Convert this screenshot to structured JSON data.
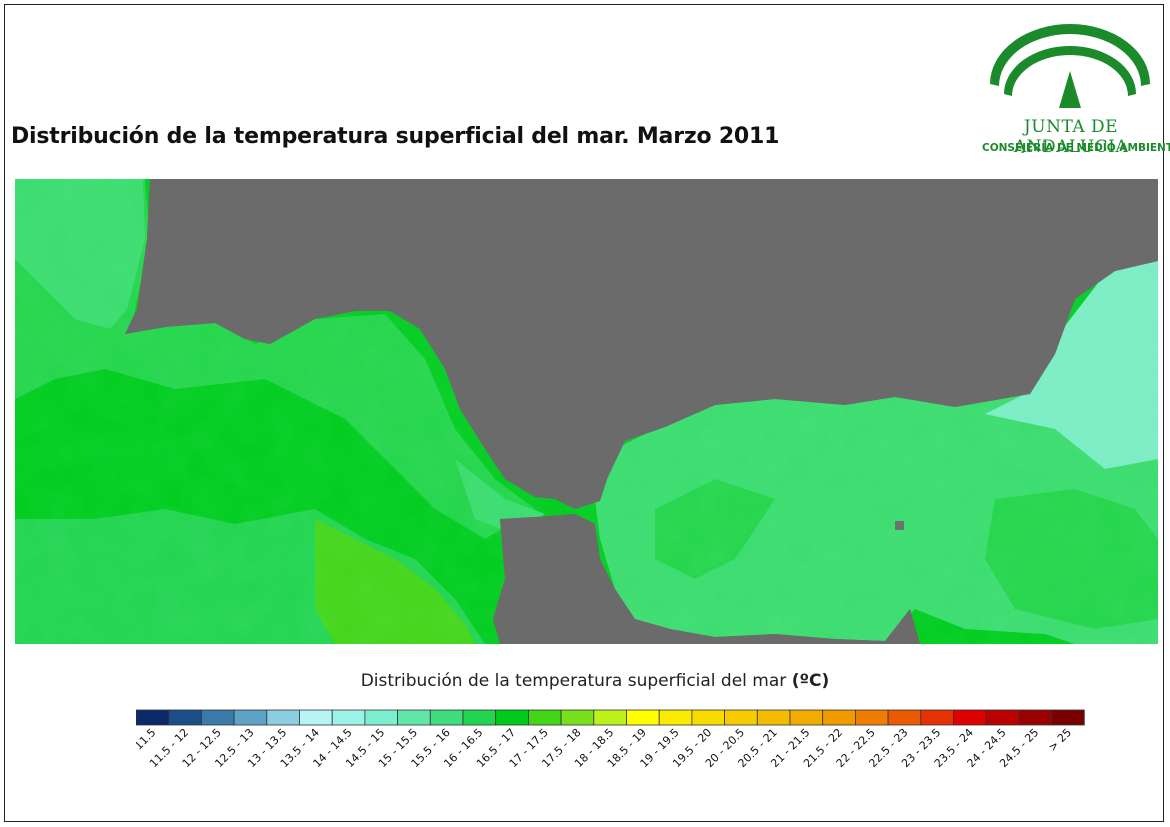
{
  "title": "Distribución de la temperatura superficial del mar. Marzo 2011",
  "logo": {
    "org": "JUNTA DE ANDALUCIA",
    "department": "CONSEJERÍA DE MEDIO AMBIENTE",
    "color": "#1a8a2b",
    "icon": "andalucia-arches-logo-icon"
  },
  "map": {
    "land_color": "#6b6b6b",
    "description_colors": {
      "sst_16_5_17": "#00cc1e",
      "sst_16_16_5": "#24d54b",
      "sst_15_5_16": "#3bdc6f",
      "sst_15_15_5": "#55e596",
      "sst_14_5_15": "#7dedc6",
      "sst_17_17_5": "#5ed610"
    }
  },
  "legend": {
    "title": "Distribución de la temperatura superficial del mar",
    "unit": "(ºC)",
    "classes": [
      {
        "label": "< 11.5",
        "color": "#0a2a6a"
      },
      {
        "label": "11.5 - 12",
        "color": "#1b4e89"
      },
      {
        "label": "12 - 12.5",
        "color": "#3a7aa8"
      },
      {
        "label": "12.5 - 13",
        "color": "#5ea3c6"
      },
      {
        "label": "13 - 13.5",
        "color": "#8ccde0"
      },
      {
        "label": "13.5 - 14",
        "color": "#b8f3f5"
      },
      {
        "label": "14 - 14.5",
        "color": "#9cf2e6"
      },
      {
        "label": "14.5 - 15",
        "color": "#7eeed0"
      },
      {
        "label": "15 - 15.5",
        "color": "#5fe6a8"
      },
      {
        "label": "15.5 - 16",
        "color": "#3edc7c"
      },
      {
        "label": "16 - 16.5",
        "color": "#22d450"
      },
      {
        "label": "16.5 - 17",
        "color": "#00cb1c"
      },
      {
        "label": "17 - 17.5",
        "color": "#45d518"
      },
      {
        "label": "17.5 - 18",
        "color": "#78e01c"
      },
      {
        "label": "18 - 18.5",
        "color": "#bcf21a"
      },
      {
        "label": "18.5 - 19",
        "color": "#ffff00"
      },
      {
        "label": "19 - 19.5",
        "color": "#fbeb00"
      },
      {
        "label": "19.5 - 20",
        "color": "#f8dc00"
      },
      {
        "label": "20 - 20.5",
        "color": "#f6cc00"
      },
      {
        "label": "20.5 - 21",
        "color": "#f4bc00"
      },
      {
        "label": "21 - 21.5",
        "color": "#f2ac00"
      },
      {
        "label": "21.5 - 22",
        "color": "#f19a00"
      },
      {
        "label": "22 - 22.5",
        "color": "#ef7d00"
      },
      {
        "label": "22.5 - 23",
        "color": "#eb5a00"
      },
      {
        "label": "23 - 23.5",
        "color": "#e63200"
      },
      {
        "label": "23.5 - 24",
        "color": "#df0000"
      },
      {
        "label": "24 - 24.5",
        "color": "#bb0000"
      },
      {
        "label": "24.5 - 25",
        "color": "#9a0000"
      },
      {
        "label": "> 25",
        "color": "#7a0000"
      }
    ]
  }
}
